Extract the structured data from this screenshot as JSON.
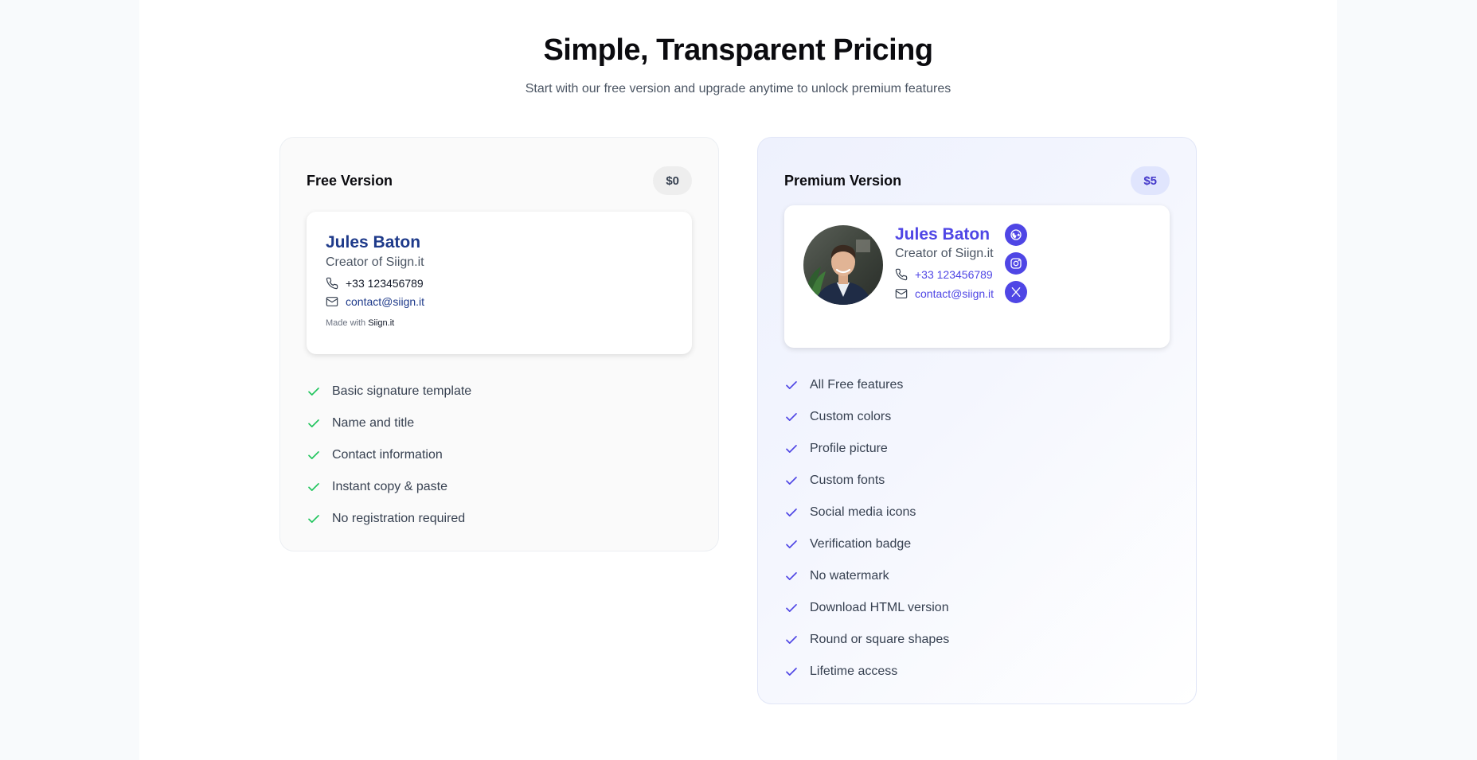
{
  "header": {
    "title": "Simple, Transparent Pricing",
    "subtitle": "Start with our free version and upgrade anytime to unlock premium features"
  },
  "colors": {
    "free_check": "#22c55e",
    "premium_check": "#4f46e5",
    "premium_accent": "#4f46e5"
  },
  "free": {
    "title": "Free Version",
    "price": "$0",
    "signature": {
      "name": "Jules Baton",
      "role": "Creator of Siign.it",
      "phone": "+33 123456789",
      "email": "contact@siign.it",
      "made_with_prefix": "Made with",
      "made_with_brand": "Siign.it"
    },
    "features": [
      "Basic signature template",
      "Name and title",
      "Contact information",
      "Instant copy & paste",
      "No registration required"
    ]
  },
  "premium": {
    "title": "Premium Version",
    "price": "$5",
    "signature": {
      "name": "Jules Baton",
      "role": "Creator of Siign.it",
      "phone": "+33 123456789",
      "email": "contact@siign.it",
      "avatar_icon": "profile-photo",
      "social_icons": [
        "globe-icon",
        "instagram-icon",
        "x-icon"
      ]
    },
    "features": [
      "All Free features",
      "Custom colors",
      "Profile picture",
      "Custom fonts",
      "Social media icons",
      "Verification badge",
      "No watermark",
      "Download HTML version",
      "Round or square shapes",
      "Lifetime access"
    ]
  }
}
